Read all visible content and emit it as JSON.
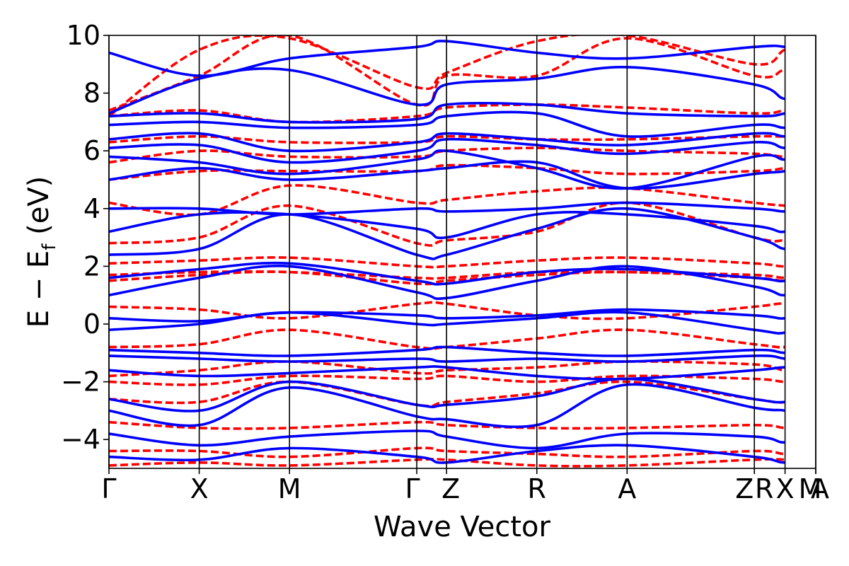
{
  "chart_data": {
    "type": "line",
    "title": "",
    "xlabel": "Wave Vector",
    "ylabel": {
      "main": "E − E",
      "sub": "f",
      "unit": " (eV)"
    },
    "ylim": [
      -5,
      10
    ],
    "yticks": [
      -4,
      -2,
      0,
      2,
      4,
      6,
      8,
      10
    ],
    "ytick_labels": [
      "−4",
      "−2",
      "0",
      "2",
      "4",
      "6",
      "8",
      "10"
    ],
    "kpath": [
      {
        "label": "Γ",
        "x": 0.0
      },
      {
        "label": "X",
        "x": 1.0
      },
      {
        "label": "M",
        "x": 2.0
      },
      {
        "label": "Γ",
        "x": 3.41
      },
      {
        "label": "Z",
        "x": 3.74
      },
      {
        "label": "R",
        "x": 4.74
      },
      {
        "label": "A",
        "x": 5.74
      },
      {
        "label": "Z",
        "x": 7.15
      },
      {
        "label": "R",
        "x": 7.15
      },
      {
        "label": "X",
        "x": 7.49
      },
      {
        "label": "M",
        "x": 7.83
      },
      {
        "label": "A",
        "x": 7.83
      }
    ],
    "xlim": [
      0,
      7.83
    ],
    "grid": false,
    "colors": {
      "series_a": "#0000ff",
      "series_b": "#ff0000"
    },
    "series": [
      {
        "style": "solid",
        "color": "#0000ff",
        "bands": [
          [
            -4.6,
            -4.7,
            -4.3,
            -4.6,
            -4.8,
            -4.4,
            -4.2,
            -4.6,
            -4.8,
            -4.6,
            -4.7
          ],
          [
            -3.8,
            -4.2,
            -3.9,
            -3.7,
            -3.9,
            -4.3,
            -3.8,
            -3.9,
            -4.1,
            -3.8,
            -3.9
          ],
          [
            -3.0,
            -3.5,
            -2.2,
            -3.2,
            -3.3,
            -3.5,
            -2.1,
            -2.9,
            -3.0,
            -3.3,
            -3.4
          ],
          [
            -2.6,
            -3.0,
            -2.0,
            -2.8,
            -2.8,
            -2.5,
            -1.9,
            -2.6,
            -2.7,
            -2.5,
            -2.3
          ],
          [
            -1.6,
            -1.8,
            -1.7,
            -1.5,
            -1.5,
            -1.8,
            -1.9,
            -1.6,
            -1.5,
            -1.6,
            -1.5
          ],
          [
            -1.1,
            -1.2,
            -1.3,
            -1.2,
            -1.3,
            -1.2,
            -1.3,
            -1.1,
            -1.2,
            -1.3,
            -1.2
          ],
          [
            -0.9,
            -1.0,
            -1.1,
            -0.9,
            -0.8,
            -1.0,
            -1.1,
            -0.9,
            -1.0,
            -0.9,
            -1.0
          ],
          [
            -0.2,
            0.0,
            0.4,
            0.0,
            0.0,
            0.2,
            0.4,
            -0.2,
            -0.3,
            0.1,
            0.2
          ],
          [
            0.2,
            0.1,
            0.4,
            0.3,
            0.2,
            0.3,
            0.5,
            0.3,
            0.2,
            0.5,
            0.4
          ],
          [
            1.0,
            1.6,
            2.0,
            1.1,
            0.9,
            1.5,
            2.0,
            1.3,
            1.0,
            1.4,
            1.7
          ],
          [
            1.6,
            1.9,
            2.1,
            1.5,
            1.4,
            1.8,
            1.9,
            1.6,
            1.5,
            1.9,
            2.0
          ],
          [
            2.4,
            2.6,
            3.8,
            2.4,
            2.4,
            3.3,
            4.0,
            3.0,
            2.6,
            2.7,
            2.9
          ],
          [
            3.2,
            3.8,
            3.8,
            3.3,
            3.0,
            3.8,
            3.8,
            3.4,
            3.2,
            3.7,
            3.8
          ],
          [
            4.0,
            4.0,
            3.8,
            4.0,
            3.9,
            4.0,
            4.2,
            4.0,
            3.9,
            4.0,
            4.0
          ],
          [
            5.0,
            5.4,
            5.0,
            5.3,
            5.4,
            5.6,
            4.7,
            5.2,
            5.3,
            5.6,
            5.3
          ],
          [
            5.8,
            5.6,
            5.2,
            5.7,
            6.0,
            5.4,
            4.7,
            5.8,
            5.7,
            5.9,
            6.0
          ],
          [
            6.1,
            6.2,
            5.6,
            6.0,
            6.4,
            6.2,
            5.9,
            6.3,
            6.1,
            6.3,
            6.2
          ],
          [
            6.4,
            6.6,
            6.0,
            6.3,
            6.6,
            6.4,
            6.2,
            6.6,
            6.5,
            6.6,
            6.5
          ],
          [
            6.9,
            7.0,
            6.8,
            6.9,
            7.2,
            7.3,
            6.5,
            6.9,
            6.8,
            7.0,
            7.1
          ],
          [
            7.2,
            7.3,
            7.0,
            7.1,
            7.6,
            7.6,
            7.3,
            7.2,
            7.3,
            7.6,
            7.4
          ],
          [
            7.3,
            8.5,
            8.8,
            7.6,
            8.3,
            8.5,
            8.9,
            8.3,
            7.8,
            8.0,
            8.0
          ],
          [
            9.4,
            8.6,
            9.2,
            9.6,
            9.8,
            9.4,
            9.2,
            9.6,
            9.6,
            9.4,
            9.2
          ]
        ]
      },
      {
        "style": "dashed",
        "color": "#ff0000",
        "bands": [
          [
            -4.9,
            -4.8,
            -4.9,
            -4.7,
            -4.7,
            -4.9,
            -4.9,
            -4.7,
            -4.7,
            -4.8,
            -4.8
          ],
          [
            -4.4,
            -4.4,
            -4.6,
            -4.3,
            -4.4,
            -4.5,
            -4.6,
            -4.4,
            -4.5,
            -4.4,
            -4.5
          ],
          [
            -3.4,
            -3.6,
            -3.6,
            -3.4,
            -3.5,
            -3.6,
            -3.6,
            -3.5,
            -3.6,
            -3.6,
            -3.6
          ],
          [
            -2.6,
            -2.7,
            -2.0,
            -2.8,
            -2.7,
            -2.4,
            -2.0,
            -2.6,
            -2.7,
            -2.3,
            -2.2
          ],
          [
            -2.0,
            -2.1,
            -1.8,
            -1.9,
            -1.8,
            -2.0,
            -1.8,
            -1.9,
            -2.0,
            -1.9,
            -1.9
          ],
          [
            -1.8,
            -1.6,
            -1.3,
            -1.7,
            -1.6,
            -1.5,
            -1.3,
            -1.4,
            -1.6,
            -1.4,
            -1.4
          ],
          [
            -0.8,
            -0.7,
            -0.2,
            -0.8,
            -0.8,
            -0.5,
            -0.2,
            -0.7,
            -0.8,
            -0.6,
            -0.6
          ],
          [
            0.6,
            0.5,
            0.2,
            0.7,
            0.7,
            0.3,
            0.2,
            0.6,
            0.7,
            0.4,
            0.4
          ],
          [
            1.5,
            1.7,
            1.8,
            1.4,
            1.5,
            1.7,
            1.8,
            1.6,
            1.5,
            1.6,
            1.7
          ],
          [
            1.7,
            1.8,
            1.8,
            1.6,
            1.6,
            1.8,
            1.8,
            1.7,
            1.6,
            1.7,
            1.8
          ],
          [
            2.1,
            2.2,
            2.3,
            2.0,
            2.0,
            2.2,
            2.3,
            2.1,
            2.0,
            2.2,
            2.3
          ],
          [
            2.8,
            3.0,
            4.1,
            2.8,
            2.9,
            3.2,
            4.2,
            3.0,
            2.9,
            3.0,
            3.0
          ],
          [
            4.2,
            3.8,
            4.8,
            4.2,
            4.3,
            4.6,
            4.7,
            4.2,
            4.1,
            4.0,
            4.0
          ],
          [
            5.0,
            5.3,
            5.3,
            5.3,
            5.5,
            5.4,
            5.2,
            5.3,
            5.4,
            5.5,
            5.4
          ],
          [
            5.6,
            6.0,
            5.8,
            5.8,
            6.0,
            6.1,
            6.0,
            5.9,
            5.8,
            6.0,
            6.1
          ],
          [
            6.3,
            6.5,
            6.3,
            6.3,
            6.5,
            6.4,
            6.4,
            6.5,
            6.5,
            6.6,
            6.4
          ],
          [
            7.2,
            7.4,
            7.0,
            7.2,
            7.5,
            7.6,
            7.5,
            7.3,
            7.4,
            7.5,
            7.7
          ],
          [
            7.4,
            8.6,
            10.0,
            7.6,
            8.6,
            8.6,
            9.9,
            8.6,
            8.8,
            8.6,
            8.9
          ],
          [
            7.2,
            9.5,
            9.9,
            8.2,
            8.7,
            9.8,
            10.0,
            9.0,
            9.5,
            9.6,
            9.8
          ]
        ]
      }
    ]
  }
}
